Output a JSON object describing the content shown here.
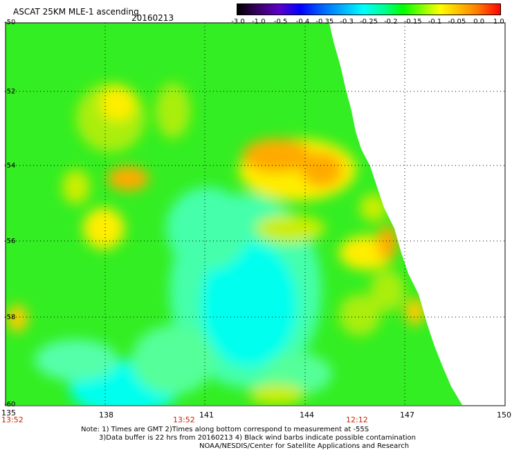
{
  "header": {
    "title": "ASCAT 25KM MLE-1 ascending",
    "date": "20160213"
  },
  "colorbar": {
    "labels": [
      "-3.0",
      "-1.0",
      "-0.5",
      "-0.4",
      "-0.35",
      "-0.3",
      "-0.25",
      "-0.2",
      "-0.15",
      "-0.1",
      "-0.05",
      "0.0",
      "1.0"
    ]
  },
  "lat_labels": [
    "-50",
    "-52",
    "-54",
    "-56",
    "-58",
    "-60"
  ],
  "lon_labels": [
    "135",
    "138",
    "141",
    "144",
    "147",
    "150"
  ],
  "times": [
    "13:52",
    "13:52",
    "12:12"
  ],
  "notes": {
    "line1": "Note: 1) Times are GMT 2)Times along bottom correspond to measurement at -55S",
    "line2": "3)Data buffer is 22 hrs from 20160213 4) Black wind barbs indicate possible contamination",
    "line3": "NOAA/NESDIS/Center for Satellite Applications and Research"
  },
  "colors": {
    "green": "#33ee22",
    "yellow_green": "#aaee11",
    "yellow": "#ffee00",
    "orange": "#ffaa00",
    "cyan": "#00ffee",
    "light_green": "#44ffaa"
  }
}
